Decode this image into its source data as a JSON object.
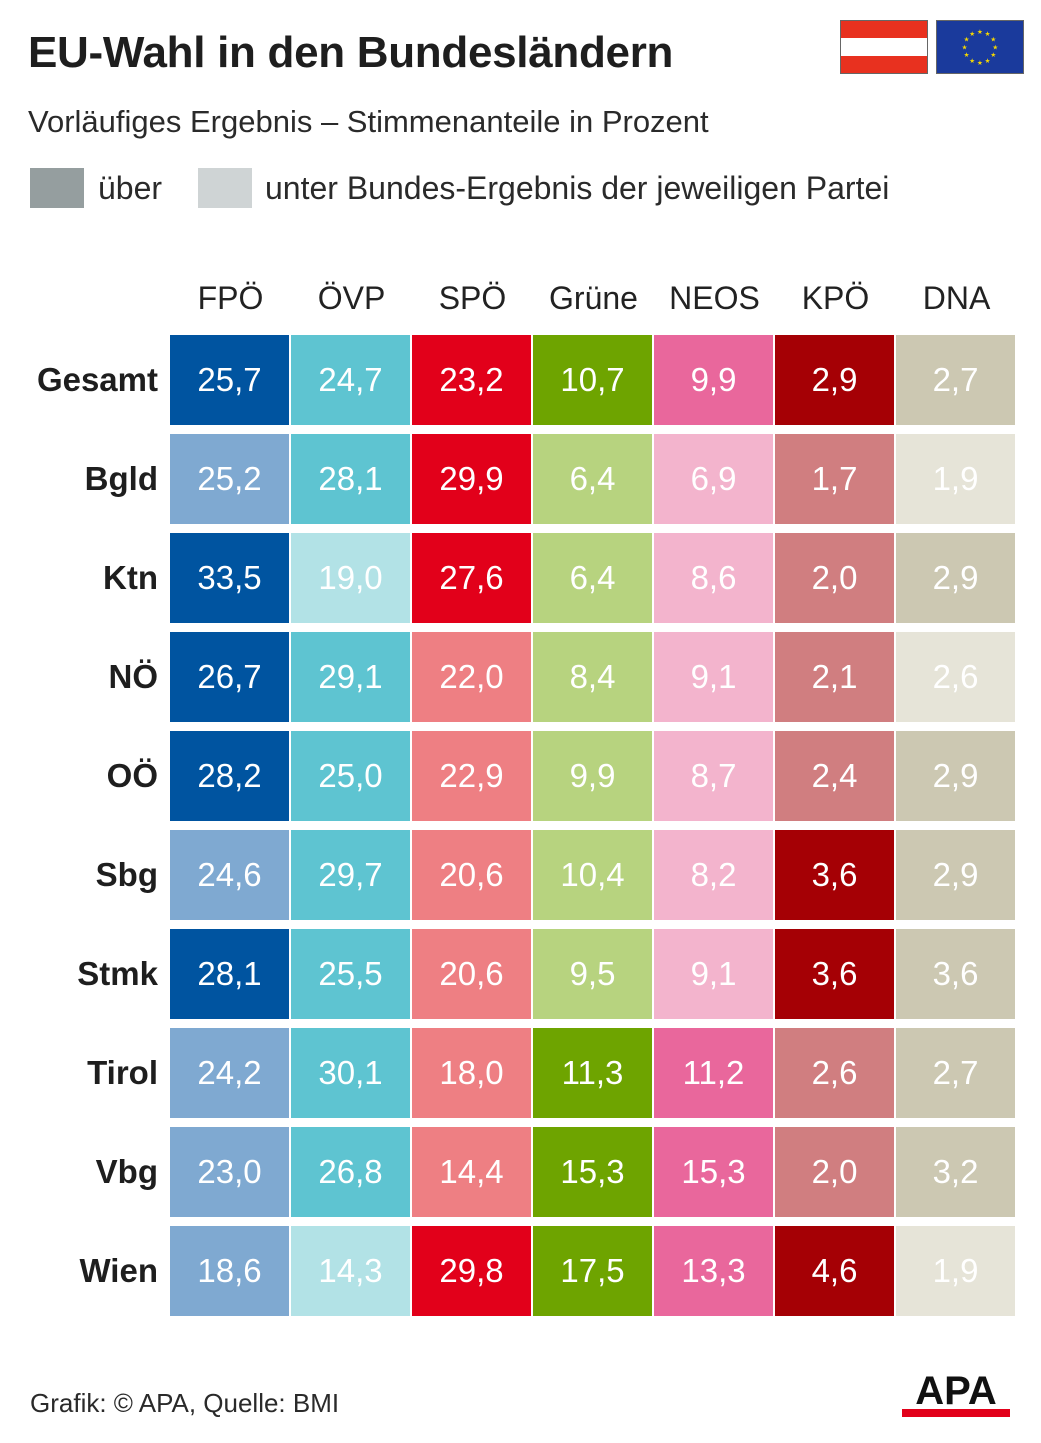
{
  "header": {
    "title": "EU-Wahl in den Bundesländern",
    "subtitle": "Vorläufiges Ergebnis – Stimmenanteile in Prozent"
  },
  "legend": {
    "above_label": "über",
    "below_label": "unter Bundes-Ergebnis der jeweiligen Partei",
    "above_color": "#959e9f",
    "below_color": "#cfd4d5"
  },
  "flags": {
    "austria": "austria-flag",
    "eu": "eu-flag"
  },
  "chart_data": {
    "type": "table",
    "title": "EU-Wahl in den Bundesländern",
    "subtitle": "Vorläufiges Ergebnis – Stimmenanteile in Prozent",
    "columns": [
      "FPÖ",
      "ÖVP",
      "SPÖ",
      "Grüne",
      "NEOS",
      "KPÖ",
      "DNA"
    ],
    "rows": [
      "Gesamt",
      "Bgld",
      "Ktn",
      "NÖ",
      "OÖ",
      "Sbg",
      "Stmk",
      "Tirol",
      "Vbg",
      "Wien"
    ],
    "values": [
      [
        "25,7",
        "24,7",
        "23,2",
        "10,7",
        "9,9",
        "2,9",
        "2,7"
      ],
      [
        "25,2",
        "28,1",
        "29,9",
        "6,4",
        "6,9",
        "1,7",
        "1,9"
      ],
      [
        "33,5",
        "19,0",
        "27,6",
        "6,4",
        "8,6",
        "2,0",
        "2,9"
      ],
      [
        "26,7",
        "29,1",
        "22,0",
        "8,4",
        "9,1",
        "2,1",
        "2,6"
      ],
      [
        "28,2",
        "25,0",
        "22,9",
        "9,9",
        "8,7",
        "2,4",
        "2,9"
      ],
      [
        "24,6",
        "29,7",
        "20,6",
        "10,4",
        "8,2",
        "3,6",
        "2,9"
      ],
      [
        "28,1",
        "25,5",
        "20,6",
        "9,5",
        "9,1",
        "3,6",
        "3,6"
      ],
      [
        "24,2",
        "30,1",
        "18,0",
        "11,3",
        "11,2",
        "2,6",
        "2,7"
      ],
      [
        "23,0",
        "26,8",
        "14,4",
        "15,3",
        "15,3",
        "2,0",
        "3,2"
      ],
      [
        "18,6",
        "14,3",
        "29,8",
        "17,5",
        "13,3",
        "4,6",
        "1,9"
      ]
    ],
    "party_colors": [
      {
        "strong": "#0054a0",
        "light": "#7fa9d1",
        "faint": "#b9dadf"
      },
      {
        "strong": "#5ec4d1",
        "light": "#5ec4d1",
        "faint": "#b2e2e6"
      },
      {
        "strong": "#e2001a",
        "light": "#ee7f83",
        "faint": "#ee7f83"
      },
      {
        "strong": "#6ea400",
        "light": "#b7d37f",
        "faint": "#b7d37f"
      },
      {
        "strong": "#e9679c",
        "light": "#f3b4cd",
        "faint": "#f3b4cd"
      },
      {
        "strong": "#a50005",
        "light": "#d07e80",
        "faint": "#d07e80"
      },
      {
        "strong": "#ccc8b2",
        "light": "#e6e4d8",
        "faint": "#e6e4d8"
      }
    ],
    "shade_levels": [
      [
        "strong",
        "strong",
        "strong",
        "strong",
        "strong",
        "strong",
        "strong"
      ],
      [
        "light",
        "strong",
        "strong",
        "light",
        "light",
        "light",
        "light"
      ],
      [
        "strong",
        "faint",
        "strong",
        "light",
        "light",
        "light",
        "strong"
      ],
      [
        "strong",
        "strong",
        "light",
        "light",
        "light",
        "light",
        "light"
      ],
      [
        "strong",
        "strong",
        "light",
        "light",
        "light",
        "light",
        "strong"
      ],
      [
        "light",
        "strong",
        "light",
        "light",
        "light",
        "strong",
        "strong"
      ],
      [
        "strong",
        "strong",
        "light",
        "light",
        "light",
        "strong",
        "strong"
      ],
      [
        "light",
        "strong",
        "light",
        "strong",
        "strong",
        "light",
        "strong"
      ],
      [
        "light",
        "strong",
        "light",
        "strong",
        "strong",
        "light",
        "strong"
      ],
      [
        "light",
        "faint",
        "strong",
        "strong",
        "strong",
        "strong",
        "light"
      ]
    ]
  },
  "footer": {
    "source": "Grafik: © APA, Quelle: BMI",
    "logo": "APA"
  }
}
